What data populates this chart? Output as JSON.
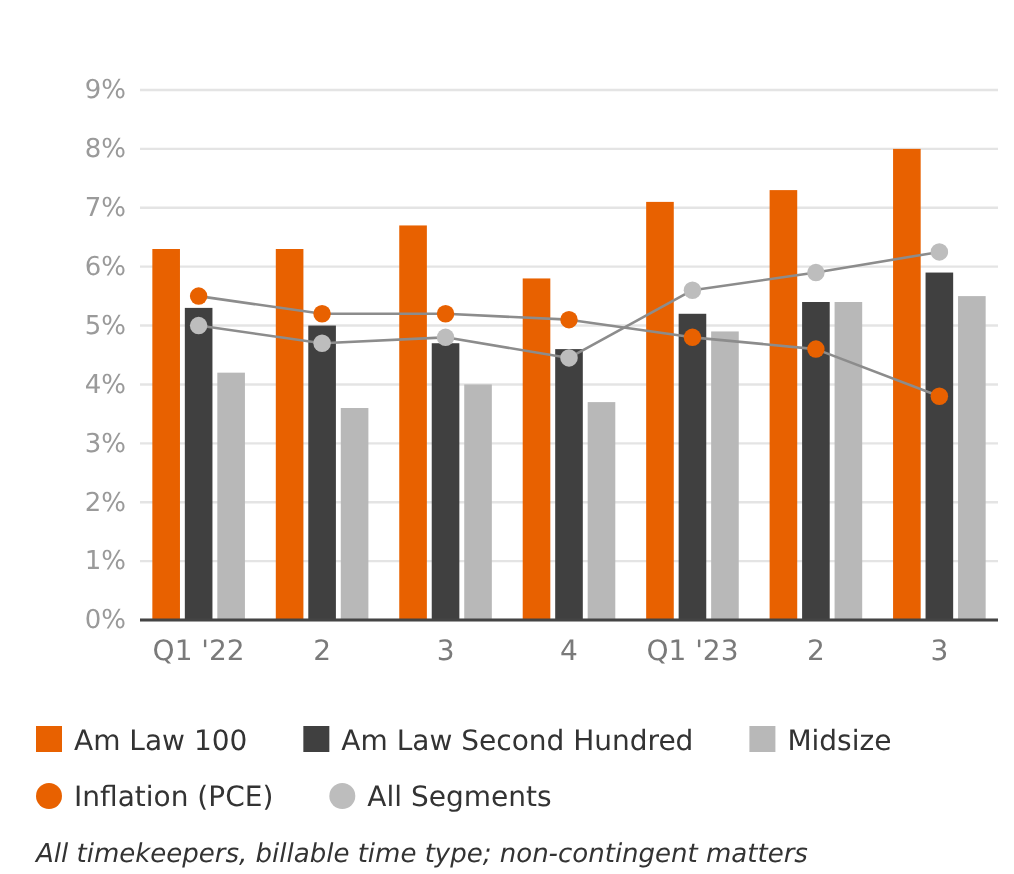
{
  "chart_data": {
    "type": "bar",
    "categories": [
      "Q1 '22",
      "2",
      "3",
      "4",
      "Q1 '23",
      "2",
      "3"
    ],
    "series": [
      {
        "name": "Am Law 100",
        "color": "#e86100",
        "values": [
          6.3,
          6.3,
          6.7,
          5.8,
          7.1,
          7.3,
          8.0
        ]
      },
      {
        "name": "Am Law Second Hundred",
        "color": "#404040",
        "values": [
          5.3,
          5.0,
          4.7,
          4.6,
          5.2,
          5.4,
          5.9
        ]
      },
      {
        "name": "Midsize",
        "color": "#b8b8b8",
        "values": [
          4.2,
          3.6,
          4.0,
          3.7,
          4.9,
          5.4,
          5.5
        ]
      },
      {
        "name": "Inflation (PCE)",
        "type": "line",
        "color": "#e86100",
        "values": [
          5.5,
          5.2,
          5.2,
          5.1,
          4.8,
          4.6,
          3.8
        ]
      },
      {
        "name": "All Segments",
        "type": "line",
        "color": "#bdbdbd",
        "values": [
          5.0,
          4.7,
          4.8,
          4.45,
          5.6,
          5.9,
          6.25
        ]
      }
    ],
    "ylim": [
      0,
      9
    ],
    "yticks": [
      {
        "value": 0,
        "label": "0%"
      },
      {
        "value": 1,
        "label": "1%"
      },
      {
        "value": 2,
        "label": "2%"
      },
      {
        "value": 3,
        "label": "3%"
      },
      {
        "value": 4,
        "label": "4%"
      },
      {
        "value": 5,
        "label": "5%"
      },
      {
        "value": 6,
        "label": "6%"
      },
      {
        "value": 7,
        "label": "7%"
      },
      {
        "value": 8,
        "label": "8%"
      },
      {
        "value": 9,
        "label": "9%"
      }
    ],
    "grid": "y",
    "legend": "bottom",
    "marker": "circle",
    "line_style": "solid",
    "annotations": [
      "All timekeepers, billable time type; non-contingent matters"
    ]
  }
}
